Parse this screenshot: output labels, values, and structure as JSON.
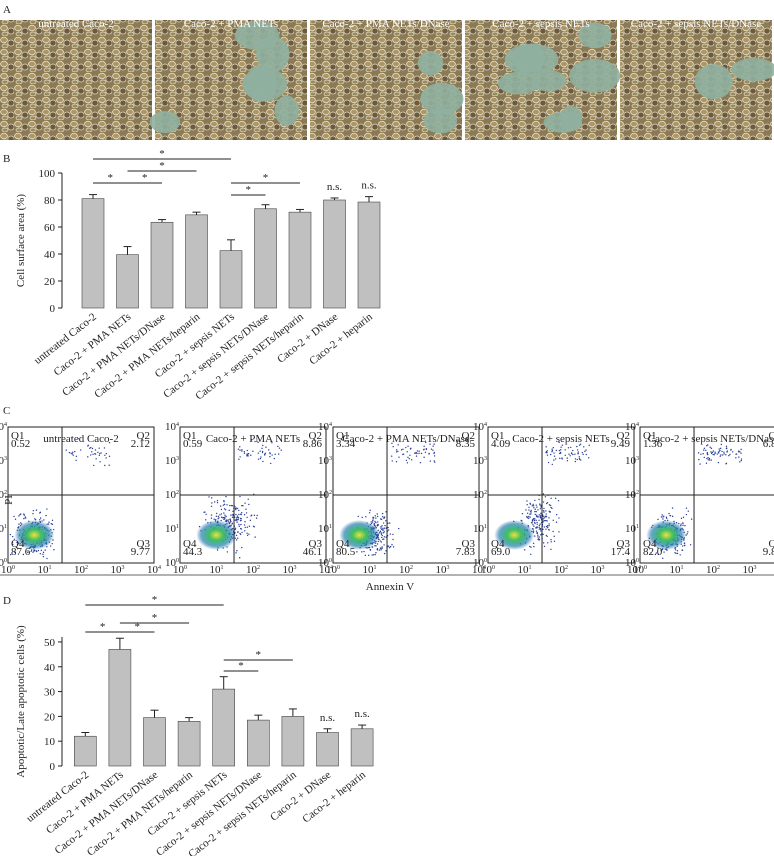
{
  "panel_labels": {
    "a": "A",
    "b": "B",
    "c": "C",
    "d": "D"
  },
  "micrographs": [
    "untreated Caco-2",
    "Caco-2 + PMA NETs",
    "Caco-2 + PMA NETs/DNase",
    "Caco-2 + sepsis NETs",
    "Caco-2 + sepsis NETs/DNase"
  ],
  "flow": {
    "x_label": "Annexin V",
    "y_label": "PI",
    "tick_base": "10",
    "tick_exponents": [
      "0",
      "1",
      "2",
      "3",
      "4"
    ],
    "plots": [
      {
        "title": "untreated Caco-2",
        "quadrants": [
          {
            "name": "Q1",
            "value": "0.52"
          },
          {
            "name": "Q2",
            "value": "2.12"
          },
          {
            "name": "Q4",
            "value": "87.6"
          },
          {
            "name": "Q3",
            "value": "9.77"
          }
        ]
      },
      {
        "title": "Caco-2 + PMA NETs",
        "quadrants": [
          {
            "name": "Q1",
            "value": "0.59"
          },
          {
            "name": "Q2",
            "value": "8.86"
          },
          {
            "name": "Q4",
            "value": "44.3"
          },
          {
            "name": "Q3",
            "value": "46.1"
          }
        ]
      },
      {
        "title": "Caco-2 + PMA NETs/DNase",
        "quadrants": [
          {
            "name": "Q1",
            "value": "3.34"
          },
          {
            "name": "Q2",
            "value": "8.35"
          },
          {
            "name": "Q4",
            "value": "80.5"
          },
          {
            "name": "Q3",
            "value": "7.83"
          }
        ]
      },
      {
        "title": "Caco-2 + sepsis NETs",
        "quadrants": [
          {
            "name": "Q1",
            "value": "4.09"
          },
          {
            "name": "Q2",
            "value": "9.49"
          },
          {
            "name": "Q4",
            "value": "69.0"
          },
          {
            "name": "Q3",
            "value": "17.4"
          }
        ]
      },
      {
        "title": "Caco-2 + sepsis NETs/DNase",
        "quadrants": [
          {
            "name": "Q1",
            "value": "1.36"
          },
          {
            "name": "Q2",
            "value": "6.86"
          },
          {
            "name": "Q4",
            "value": "82.0"
          },
          {
            "name": "Q3",
            "value": "9.81"
          }
        ]
      }
    ]
  },
  "chart_data": [
    {
      "type": "bar",
      "y_label": "Cell surface area (%)",
      "color": "#c0c0c0",
      "categories": [
        "untreated Caco-2",
        "Caco-2 + PMA NETs",
        "Caco-2 + PMA NETs/DNase",
        "Caco-2 + PMA NETs/heparin",
        "Caco-2 + sepsis NETs",
        "Caco-2 + sepsis NETs/DNase",
        "Caco-2 + sepsis NETs/heparin",
        "Caco-2 + DNase",
        "Caco-2 + heparin"
      ],
      "values": [
        81,
        39.5,
        63.5,
        69,
        42.5,
        73.5,
        71,
        80,
        78.5
      ],
      "errors": [
        3,
        6,
        2,
        2,
        8,
        3,
        2,
        1.5,
        4
      ],
      "ylim": [
        0,
        100
      ],
      "yticks": [
        0,
        20,
        40,
        60,
        80,
        100
      ],
      "significance": [
        {
          "from": "untreated Caco-2",
          "to": "Caco-2 + PMA NETs",
          "text": "*"
        },
        {
          "from": "Caco-2 + PMA NETs",
          "to": "Caco-2 + PMA NETs/DNase",
          "text": "*"
        },
        {
          "from": "Caco-2 + PMA NETs",
          "to": "Caco-2 + PMA NETs/heparin",
          "text": "*"
        },
        {
          "from": "untreated Caco-2",
          "to": "Caco-2 + sepsis NETs",
          "text": "*"
        },
        {
          "from": "Caco-2 + sepsis NETs",
          "to": "Caco-2 + sepsis NETs/DNase",
          "text": "*"
        },
        {
          "from": "Caco-2 + sepsis NETs",
          "to": "Caco-2 + sepsis NETs/heparin",
          "text": "*"
        }
      ],
      "annotations": [
        {
          "category": "Caco-2 + DNase",
          "text": "n.s."
        },
        {
          "category": "Caco-2 + heparin",
          "text": "n.s."
        }
      ]
    },
    {
      "type": "bar",
      "y_label": "Apoptotic/Late apoptotic cells (%)",
      "color": "#c0c0c0",
      "categories": [
        "untreated Caco-2",
        "Caco-2 + PMA NETs",
        "Caco-2 + PMA NETs/DNase",
        "Caco-2 + PMA NETs/heparin",
        "Caco-2 + sepsis NETs",
        "Caco-2 + sepsis NETs/DNase",
        "Caco-2 + sepsis NETs/heparin",
        "Caco-2 + DNase",
        "Caco-2 + heparin"
      ],
      "values": [
        12,
        47,
        19.5,
        18,
        31,
        18.5,
        20,
        13.5,
        15
      ],
      "errors": [
        1.5,
        4.5,
        3,
        1.5,
        5,
        2,
        3,
        1.5,
        1.5
      ],
      "ylim": [
        0,
        52
      ],
      "yticks": [
        0,
        10,
        20,
        30,
        40,
        50
      ],
      "significance": [
        {
          "from": "untreated Caco-2",
          "to": "Caco-2 + PMA NETs",
          "text": "*"
        },
        {
          "from": "Caco-2 + PMA NETs",
          "to": "Caco-2 + PMA NETs/DNase",
          "text": "*"
        },
        {
          "from": "Caco-2 + PMA NETs",
          "to": "Caco-2 + PMA NETs/heparin",
          "text": "*"
        },
        {
          "from": "untreated Caco-2",
          "to": "Caco-2 + sepsis NETs",
          "text": "*"
        },
        {
          "from": "Caco-2 + sepsis NETs",
          "to": "Caco-2 + sepsis NETs/DNase",
          "text": "*"
        },
        {
          "from": "Caco-2 + sepsis NETs",
          "to": "Caco-2 + sepsis NETs/heparin",
          "text": "*"
        }
      ],
      "annotations": [
        {
          "category": "Caco-2 + DNase",
          "text": "n.s."
        },
        {
          "category": "Caco-2 + heparin",
          "text": "n.s."
        }
      ]
    }
  ]
}
